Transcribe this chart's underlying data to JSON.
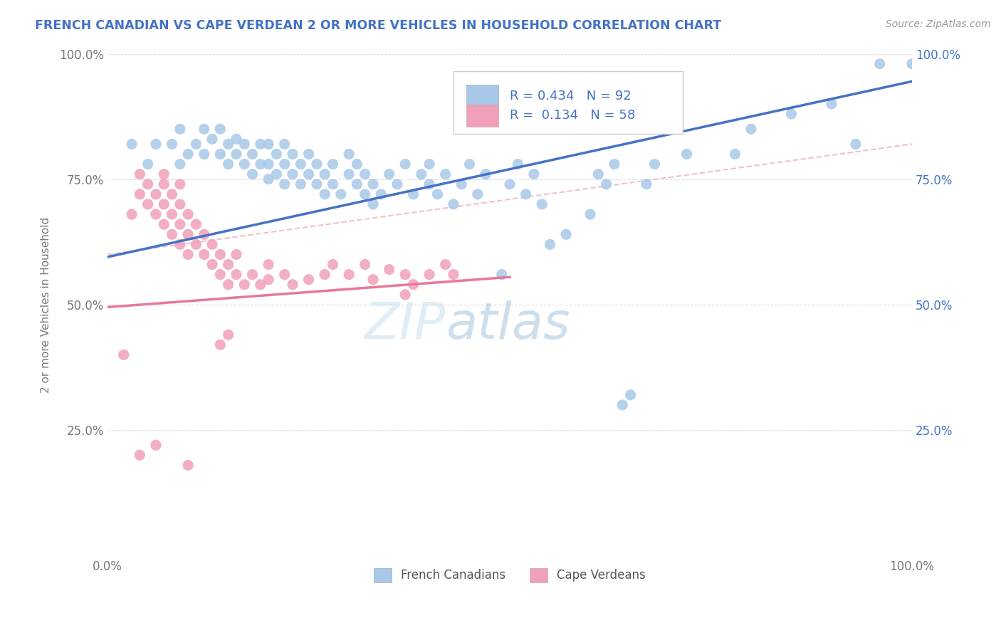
{
  "title": "FRENCH CANADIAN VS CAPE VERDEAN 2 OR MORE VEHICLES IN HOUSEHOLD CORRELATION CHART",
  "source": "Source: ZipAtlas.com",
  "ylabel": "2 or more Vehicles in Household",
  "xlim": [
    0,
    1
  ],
  "ylim": [
    0,
    1
  ],
  "xtick_positions": [
    0.0,
    0.25,
    0.5,
    0.75,
    1.0
  ],
  "xtick_labels": [
    "0.0%",
    "",
    "",
    "",
    "100.0%"
  ],
  "ytick_values": [
    0.0,
    0.25,
    0.5,
    0.75,
    1.0
  ],
  "ytick_labels": [
    "",
    "25.0%",
    "50.0%",
    "75.0%",
    "100.0%"
  ],
  "right_ytick_values": [
    0.25,
    0.5,
    0.75,
    1.0
  ],
  "right_ytick_labels": [
    "25.0%",
    "50.0%",
    "75.0%",
    "100.0%"
  ],
  "legend_label1": "French Canadians",
  "legend_label2": "Cape Verdeans",
  "R1": 0.434,
  "N1": 92,
  "R2": 0.134,
  "N2": 58,
  "blue_color": "#A8C8E8",
  "pink_color": "#F0A0B8",
  "blue_line_color": "#4472C4",
  "pink_line_color": "#E87896",
  "dashed_line_color": "#E8A8B8",
  "title_color": "#4472C4",
  "source_color": "#999999",
  "blue_line_x0": 0.0,
  "blue_line_y0": 0.595,
  "blue_line_x1": 1.0,
  "blue_line_y1": 0.945,
  "pink_line_x0": 0.0,
  "pink_line_y0": 0.495,
  "pink_line_x1": 0.5,
  "pink_line_y1": 0.555,
  "dashed_line_x0": 0.0,
  "dashed_line_y0": 0.6,
  "dashed_line_x1": 1.0,
  "dashed_line_y1": 0.82,
  "blue_scatter": [
    [
      0.03,
      0.82
    ],
    [
      0.05,
      0.78
    ],
    [
      0.06,
      0.82
    ],
    [
      0.08,
      0.82
    ],
    [
      0.09,
      0.78
    ],
    [
      0.09,
      0.85
    ],
    [
      0.1,
      0.8
    ],
    [
      0.11,
      0.82
    ],
    [
      0.12,
      0.8
    ],
    [
      0.12,
      0.85
    ],
    [
      0.13,
      0.83
    ],
    [
      0.14,
      0.8
    ],
    [
      0.14,
      0.85
    ],
    [
      0.15,
      0.82
    ],
    [
      0.15,
      0.78
    ],
    [
      0.16,
      0.8
    ],
    [
      0.16,
      0.83
    ],
    [
      0.17,
      0.78
    ],
    [
      0.17,
      0.82
    ],
    [
      0.18,
      0.76
    ],
    [
      0.18,
      0.8
    ],
    [
      0.19,
      0.78
    ],
    [
      0.19,
      0.82
    ],
    [
      0.2,
      0.75
    ],
    [
      0.2,
      0.78
    ],
    [
      0.2,
      0.82
    ],
    [
      0.21,
      0.76
    ],
    [
      0.21,
      0.8
    ],
    [
      0.22,
      0.74
    ],
    [
      0.22,
      0.78
    ],
    [
      0.22,
      0.82
    ],
    [
      0.23,
      0.76
    ],
    [
      0.23,
      0.8
    ],
    [
      0.24,
      0.74
    ],
    [
      0.24,
      0.78
    ],
    [
      0.25,
      0.76
    ],
    [
      0.25,
      0.8
    ],
    [
      0.26,
      0.74
    ],
    [
      0.26,
      0.78
    ],
    [
      0.27,
      0.72
    ],
    [
      0.27,
      0.76
    ],
    [
      0.28,
      0.74
    ],
    [
      0.28,
      0.78
    ],
    [
      0.29,
      0.72
    ],
    [
      0.3,
      0.76
    ],
    [
      0.3,
      0.8
    ],
    [
      0.31,
      0.74
    ],
    [
      0.31,
      0.78
    ],
    [
      0.32,
      0.72
    ],
    [
      0.32,
      0.76
    ],
    [
      0.33,
      0.7
    ],
    [
      0.33,
      0.74
    ],
    [
      0.34,
      0.72
    ],
    [
      0.35,
      0.76
    ],
    [
      0.36,
      0.74
    ],
    [
      0.37,
      0.78
    ],
    [
      0.38,
      0.72
    ],
    [
      0.39,
      0.76
    ],
    [
      0.4,
      0.74
    ],
    [
      0.4,
      0.78
    ],
    [
      0.41,
      0.72
    ],
    [
      0.42,
      0.76
    ],
    [
      0.43,
      0.7
    ],
    [
      0.44,
      0.74
    ],
    [
      0.45,
      0.78
    ],
    [
      0.46,
      0.72
    ],
    [
      0.47,
      0.76
    ],
    [
      0.49,
      0.56
    ],
    [
      0.5,
      0.74
    ],
    [
      0.51,
      0.78
    ],
    [
      0.52,
      0.72
    ],
    [
      0.53,
      0.76
    ],
    [
      0.54,
      0.7
    ],
    [
      0.55,
      0.62
    ],
    [
      0.57,
      0.64
    ],
    [
      0.6,
      0.68
    ],
    [
      0.61,
      0.76
    ],
    [
      0.62,
      0.74
    ],
    [
      0.63,
      0.78
    ],
    [
      0.64,
      0.3
    ],
    [
      0.65,
      0.32
    ],
    [
      0.67,
      0.74
    ],
    [
      0.68,
      0.78
    ],
    [
      0.72,
      0.8
    ],
    [
      0.78,
      0.8
    ],
    [
      0.8,
      0.85
    ],
    [
      0.85,
      0.88
    ],
    [
      0.9,
      0.9
    ],
    [
      0.93,
      0.82
    ],
    [
      0.96,
      0.98
    ],
    [
      1.0,
      0.98
    ]
  ],
  "pink_scatter": [
    [
      0.02,
      0.4
    ],
    [
      0.03,
      0.68
    ],
    [
      0.04,
      0.72
    ],
    [
      0.04,
      0.76
    ],
    [
      0.05,
      0.7
    ],
    [
      0.05,
      0.74
    ],
    [
      0.06,
      0.68
    ],
    [
      0.06,
      0.72
    ],
    [
      0.07,
      0.66
    ],
    [
      0.07,
      0.7
    ],
    [
      0.07,
      0.74
    ],
    [
      0.07,
      0.76
    ],
    [
      0.08,
      0.64
    ],
    [
      0.08,
      0.68
    ],
    [
      0.08,
      0.72
    ],
    [
      0.09,
      0.62
    ],
    [
      0.09,
      0.66
    ],
    [
      0.09,
      0.7
    ],
    [
      0.09,
      0.74
    ],
    [
      0.1,
      0.6
    ],
    [
      0.1,
      0.64
    ],
    [
      0.1,
      0.68
    ],
    [
      0.11,
      0.62
    ],
    [
      0.11,
      0.66
    ],
    [
      0.12,
      0.6
    ],
    [
      0.12,
      0.64
    ],
    [
      0.13,
      0.58
    ],
    [
      0.13,
      0.62
    ],
    [
      0.14,
      0.56
    ],
    [
      0.14,
      0.6
    ],
    [
      0.15,
      0.54
    ],
    [
      0.15,
      0.58
    ],
    [
      0.16,
      0.56
    ],
    [
      0.16,
      0.6
    ],
    [
      0.17,
      0.54
    ],
    [
      0.18,
      0.56
    ],
    [
      0.19,
      0.54
    ],
    [
      0.2,
      0.55
    ],
    [
      0.2,
      0.58
    ],
    [
      0.22,
      0.56
    ],
    [
      0.23,
      0.54
    ],
    [
      0.25,
      0.55
    ],
    [
      0.27,
      0.56
    ],
    [
      0.28,
      0.58
    ],
    [
      0.3,
      0.56
    ],
    [
      0.32,
      0.58
    ],
    [
      0.33,
      0.55
    ],
    [
      0.35,
      0.57
    ],
    [
      0.37,
      0.52
    ],
    [
      0.37,
      0.56
    ],
    [
      0.38,
      0.54
    ],
    [
      0.4,
      0.56
    ],
    [
      0.42,
      0.58
    ],
    [
      0.43,
      0.56
    ],
    [
      0.04,
      0.2
    ],
    [
      0.06,
      0.22
    ],
    [
      0.1,
      0.18
    ],
    [
      0.14,
      0.42
    ],
    [
      0.15,
      0.44
    ]
  ],
  "watermark_text": "ZIP",
  "watermark_text2": "atlas",
  "background_color": "#FFFFFF",
  "grid_color": "#DDDDDD"
}
